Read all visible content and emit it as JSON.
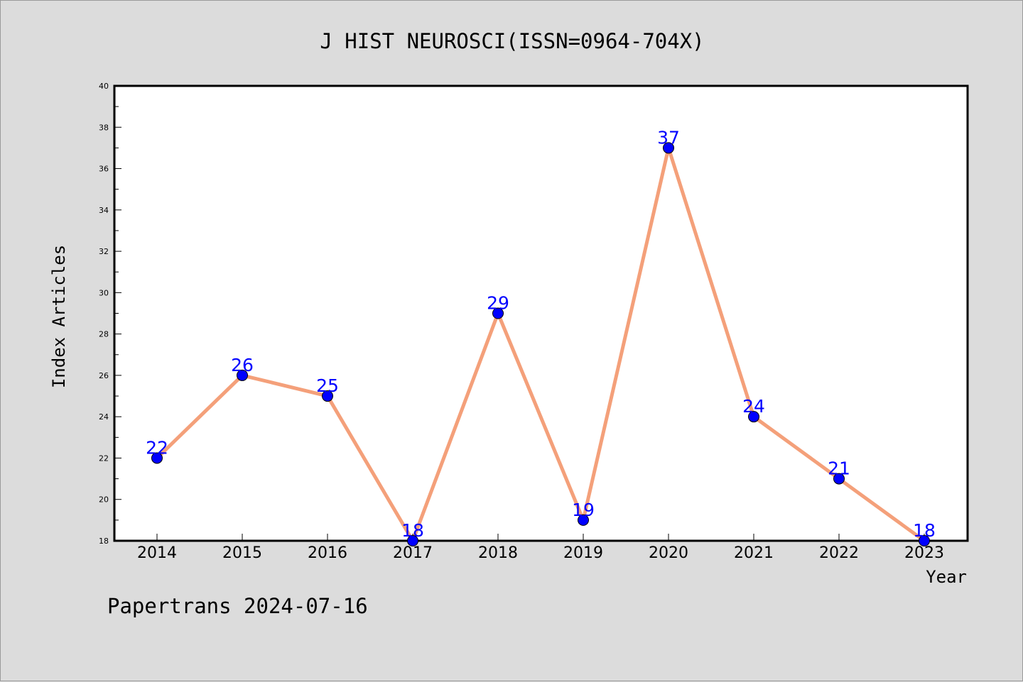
{
  "chart_data": {
    "type": "line",
    "title": "J HIST NEUROSCI(ISSN=0964-704X)",
    "xlabel": "Year",
    "ylabel": "Index Articles",
    "categories": [
      "2014",
      "2015",
      "2016",
      "2017",
      "2018",
      "2019",
      "2020",
      "2021",
      "2022",
      "2023"
    ],
    "values": [
      22,
      26,
      25,
      18,
      29,
      19,
      37,
      24,
      21,
      18
    ],
    "ylim": [
      18,
      40
    ],
    "yticks": [
      18,
      20,
      22,
      24,
      26,
      28,
      30,
      32,
      34,
      36,
      38,
      40
    ],
    "grid": false,
    "line_color": "#f4a07a",
    "marker_color": "#0000ff",
    "label_color": "#0000ff"
  },
  "footer": {
    "text": "Papertrans 2024-07-16"
  }
}
